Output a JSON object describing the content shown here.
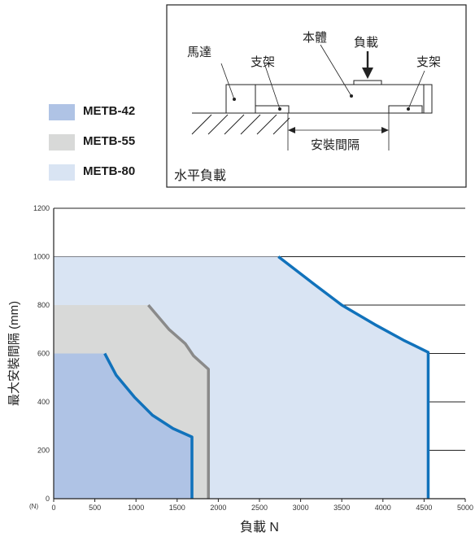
{
  "legend": [
    {
      "label": "METB-42",
      "color": "#afc3e5"
    },
    {
      "label": "METB-55",
      "color": "#d8d9d8"
    },
    {
      "label": "METB-80",
      "color": "#d9e4f3"
    }
  ],
  "diagram": {
    "caption": "水平負載",
    "labels": {
      "motor": "馬達",
      "body": "本體",
      "load": "負載",
      "bracket_left": "支架",
      "bracket_right": "支架",
      "spacing": "安裝間隔"
    }
  },
  "chart_data": {
    "type": "area",
    "xlabel": "負載 N",
    "ylabel": "最大安裝間隔 (mm)",
    "x_unit": "(N)",
    "xlim": [
      0,
      5000
    ],
    "ylim": [
      0,
      1200
    ],
    "xticks": [
      0,
      500,
      1000,
      1500,
      2000,
      2500,
      3000,
      3500,
      4000,
      4500,
      5000
    ],
    "yticks": [
      0,
      200,
      400,
      600,
      800,
      1000,
      1200
    ],
    "grid": "horizontal",
    "series": [
      {
        "name": "METB-80",
        "fill": "#d9e4f3",
        "line": "#1172bb",
        "x": [
          0,
          2730,
          3150,
          3500,
          3900,
          4250,
          4550,
          4550
        ],
        "y": [
          1000,
          1000,
          890,
          800,
          720,
          655,
          605,
          0
        ]
      },
      {
        "name": "METB-55",
        "fill": "#d8d9d8",
        "line": "#8a8a8a",
        "x": [
          0,
          1150,
          1400,
          1600,
          1700,
          1880,
          1880
        ],
        "y": [
          800,
          800,
          700,
          640,
          590,
          535,
          0
        ]
      },
      {
        "name": "METB-42",
        "fill": "#afc3e5",
        "line": "#1172bb",
        "x": [
          0,
          620,
          760,
          980,
          1200,
          1450,
          1680,
          1680
        ],
        "y": [
          600,
          600,
          510,
          420,
          345,
          290,
          255,
          0
        ]
      }
    ]
  }
}
